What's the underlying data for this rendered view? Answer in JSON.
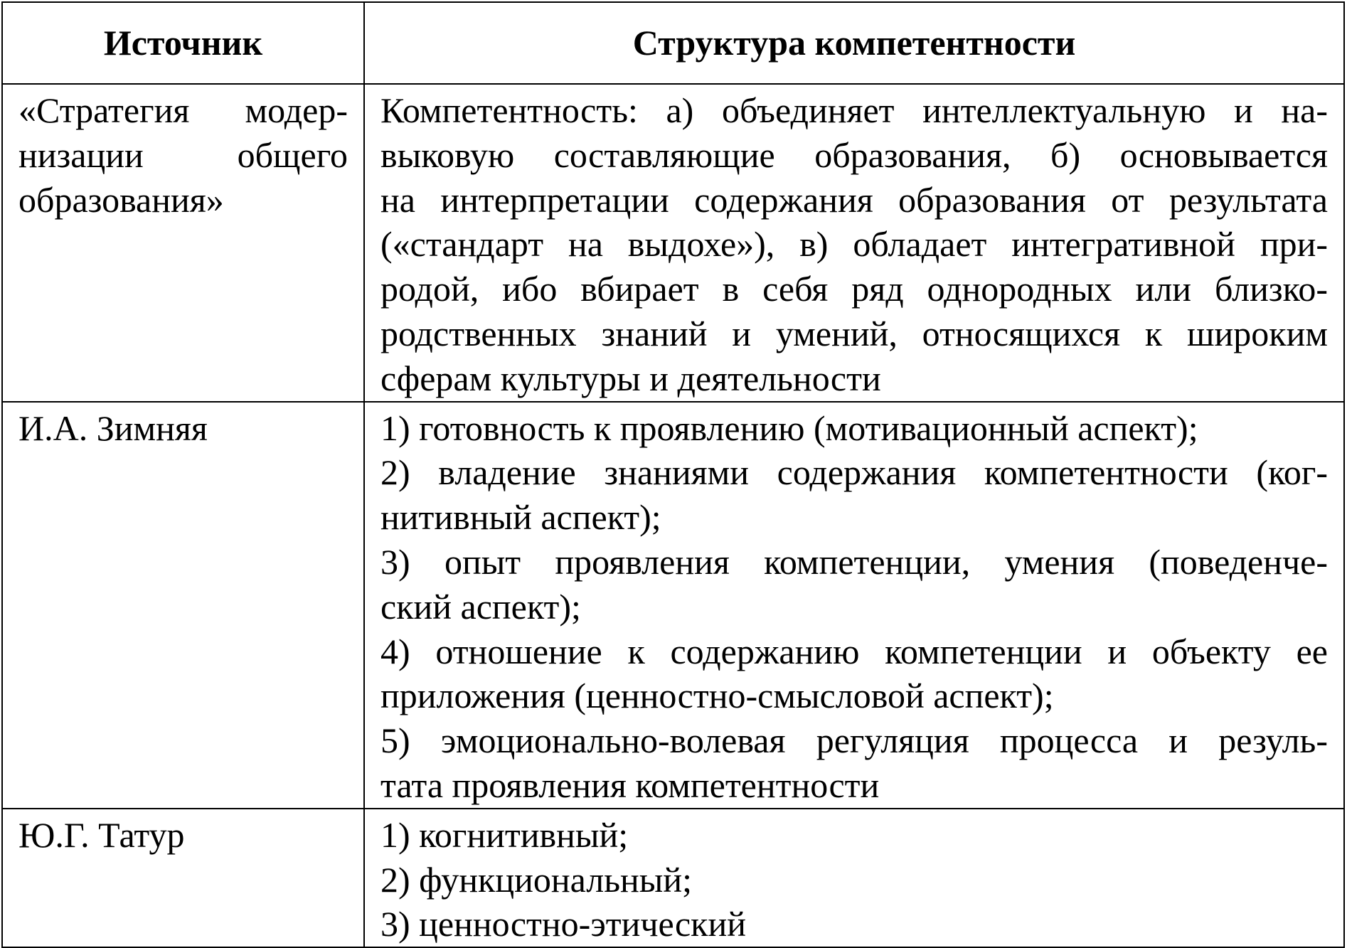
{
  "table": {
    "headers": [
      "Источник",
      "Структура компетентности"
    ],
    "rows": [
      {
        "source": [
          "«Стратегия модер-",
          "низации общего",
          "образования»"
        ],
        "structure": [
          [
            "Компетентность: а) объединяет интеллектуальную и на-",
            "выковую составляющие образования, б) основывается",
            "на интерпретации содержания образования от результата",
            "(«стандарт на выдохе»), в) обладает интегративной при-",
            "родой, ибо вбирает в себя ряд однородных или близко-",
            "родственных знаний и умений, относящихся к широким",
            "сферам культуры и деятельности"
          ]
        ]
      },
      {
        "source": [
          "И.А. Зимняя"
        ],
        "structure": [
          [
            "1) готовность к проявлению (мотивационный аспект);"
          ],
          [
            "2) владение знаниями содержания компетентности (ког-",
            "нитивный аспект);"
          ],
          [
            "3) опыт проявления компетенции, умения (поведенче-",
            "ский аспект);"
          ],
          [
            "4) отношение к содержанию компетенции и объекту ее",
            "приложения (ценностно-смысловой аспект);"
          ],
          [
            "5) эмоционально-волевая регуляция процесса и резуль-",
            "тата проявления компетентности"
          ]
        ]
      },
      {
        "source": [
          "Ю.Г. Татур"
        ],
        "structure": [
          [
            "1) когнитивный;"
          ],
          [
            "2) функциональный;"
          ],
          [
            "3) ценностно-этический"
          ]
        ]
      }
    ]
  }
}
